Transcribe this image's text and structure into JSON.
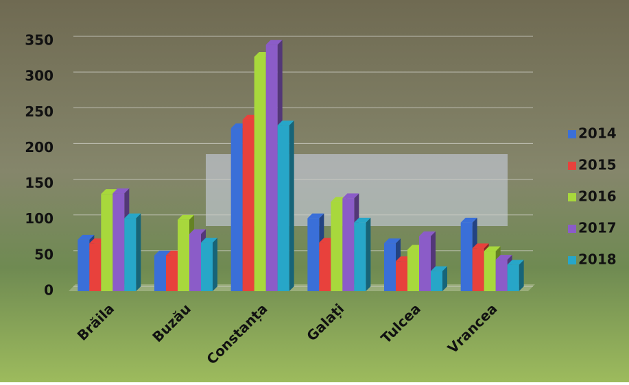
{
  "chart_data": {
    "type": "bar",
    "categories": [
      "Brăila",
      "Buzău",
      "Constanța",
      "Galați",
      "Tulcea",
      "Vrancea"
    ],
    "series": [
      {
        "name": "2014",
        "color": "#3a6fd8",
        "values": [
          72,
          50,
          228,
          102,
          67,
          96
        ]
      },
      {
        "name": "2015",
        "color": "#e8413c",
        "values": [
          67,
          50,
          240,
          68,
          42,
          60
        ]
      },
      {
        "name": "2016",
        "color": "#a8d83c",
        "values": [
          136,
          100,
          328,
          125,
          58,
          56
        ]
      },
      {
        "name": "2017",
        "color": "#8b5cc8",
        "values": [
          137,
          80,
          345,
          130,
          77,
          44
        ]
      },
      {
        "name": "2018",
        "color": "#27a6c8",
        "values": [
          102,
          68,
          232,
          96,
          28,
          37
        ]
      }
    ],
    "ylim": [
      0,
      350
    ],
    "yticks": [
      0,
      50,
      100,
      150,
      200,
      250,
      300,
      350
    ],
    "grid": true,
    "legend": "right"
  }
}
